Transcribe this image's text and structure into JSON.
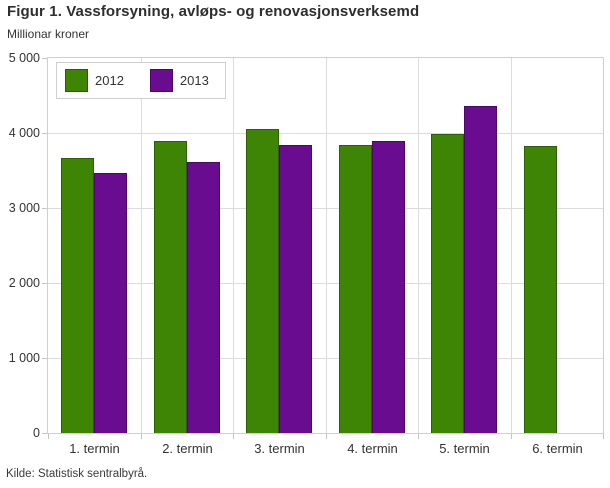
{
  "figure": {
    "title": "Figur 1. Vassforsyning, avløps- og renovasjonsverksemd",
    "subtitle": "Millionar kroner",
    "source": "Kilde: Statistisk sentralbyrå."
  },
  "colors": {
    "series_2012": "#3e8505",
    "series_2013": "#6a0c8f",
    "grid": "#dcdcdc",
    "axis": "#cfcfcf",
    "text": "#333333"
  },
  "chart_data": {
    "type": "bar",
    "title": "Figur 1. Vassforsyning, avløps- og renovasjonsverksemd",
    "ylabel": "Millionar kroner",
    "xlabel": "",
    "categories": [
      "1. termin",
      "2. termin",
      "3. termin",
      "4. termin",
      "5. termin",
      "6. termin"
    ],
    "series": [
      {
        "name": "2012",
        "color": "#3e8505",
        "values": [
          3670,
          3890,
          4050,
          3840,
          3990,
          3820
        ]
      },
      {
        "name": "2013",
        "color": "#6a0c8f",
        "values": [
          3470,
          3610,
          3840,
          3890,
          4360,
          null
        ]
      }
    ],
    "ylim": [
      0,
      5000
    ],
    "ytick_step": 1000,
    "ytick_labels": [
      "0",
      "1 000",
      "2 000",
      "3 000",
      "4 000",
      "5 000"
    ],
    "grid": true,
    "legend_position": "top-left",
    "source_note": "Kilde: Statistisk sentralbyrå."
  }
}
